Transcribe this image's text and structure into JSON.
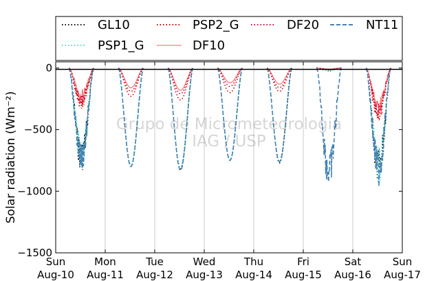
{
  "chart_data": {
    "type": "line",
    "ylabel": "Solar radiation (Wm⁻²)",
    "ylim": [
      -1500,
      50
    ],
    "yticks": [
      0,
      -500,
      -1000,
      -1500
    ],
    "ytick_labels": [
      "0",
      "−500",
      "−1000",
      "−1500"
    ],
    "xlim": [
      "2014-08-10",
      "2014-08-17"
    ],
    "xtick_labels": [
      [
        "Sun",
        "Aug-10"
      ],
      [
        "Mon",
        "Aug-11"
      ],
      [
        "Tue",
        "Aug-12"
      ],
      [
        "Wed",
        "Aug-13"
      ],
      [
        "Thu",
        "Aug-14"
      ],
      [
        "Fri",
        "Aug-15"
      ],
      [
        "Sat",
        "Aug-16"
      ],
      [
        "Sun",
        "Aug-17"
      ]
    ],
    "grid": "vertical",
    "legend_position": "top",
    "watermark": [
      "Grupo de Micrometeorologia",
      "IAG / USP"
    ],
    "series": [
      {
        "name": "GL10",
        "color": "#000000",
        "style": "dotted",
        "daily_min": [
          -770,
          -800,
          -820,
          -750,
          -770,
          -20,
          -870
        ]
      },
      {
        "name": "PSP1_G",
        "color": "#40e0d0",
        "style": "dotted",
        "daily_min": [
          -760,
          -790,
          -810,
          -740,
          -760,
          -20,
          -860
        ]
      },
      {
        "name": "PSP2_G",
        "color": "#dd0000",
        "style": "dotted",
        "daily_min": [
          -320,
          -230,
          -260,
          -200,
          -190,
          -15,
          -400
        ]
      },
      {
        "name": "DF10",
        "color": "#f08080",
        "style": "solid",
        "daily_min": [
          -240,
          -160,
          -180,
          -120,
          -130,
          -10,
          -330
        ]
      },
      {
        "name": "DF20",
        "color": "#cc0033",
        "style": "dotted",
        "daily_min": [
          -280,
          -190,
          -210,
          -150,
          -160,
          -12,
          -370
        ]
      },
      {
        "name": "NT11",
        "color": "#4682b4",
        "style": "dashed",
        "daily_min": [
          -780,
          -800,
          -830,
          -750,
          -760,
          -910,
          -880
        ]
      }
    ]
  }
}
